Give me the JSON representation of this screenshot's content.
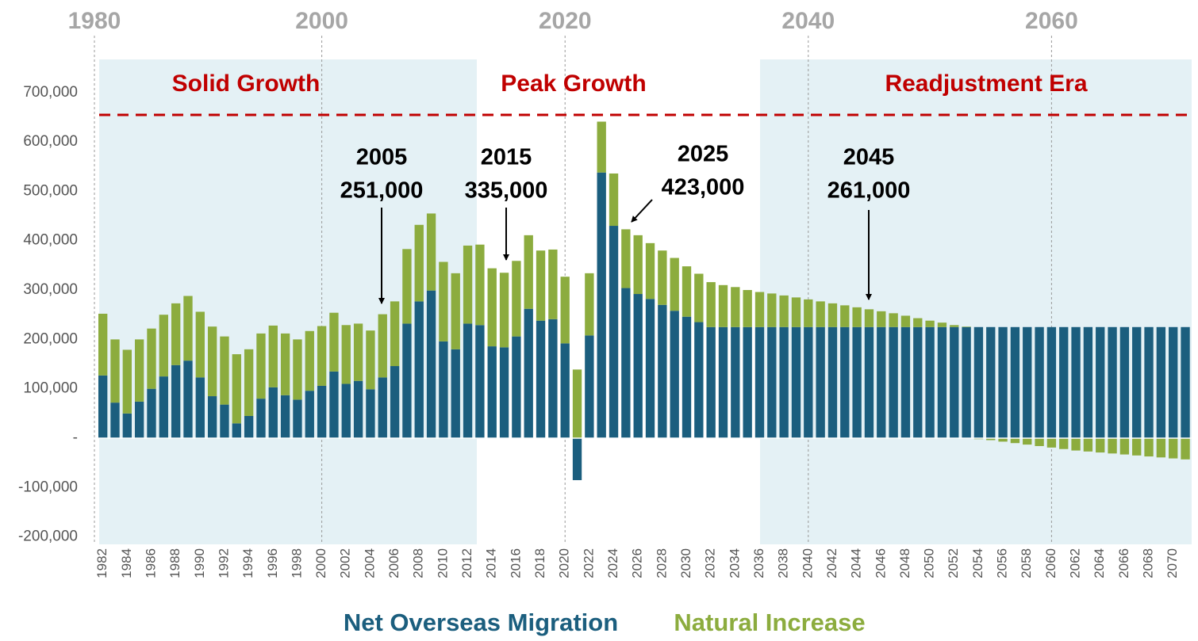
{
  "chart_data": {
    "type": "bar",
    "stacked": true,
    "categories": [
      "1982",
      null,
      "1984",
      null,
      "1986",
      null,
      "1988",
      null,
      "1990",
      null,
      "1992",
      null,
      "1994",
      null,
      "1996",
      null,
      "1998",
      null,
      "2000",
      null,
      "2002",
      null,
      "2004",
      null,
      "2006",
      null,
      "2008",
      null,
      "2010",
      null,
      "2012",
      null,
      "2014",
      null,
      "2016",
      null,
      "2018",
      null,
      "2020",
      null,
      "2022",
      null,
      "2024",
      null,
      "2026",
      null,
      "2028",
      null,
      "2030",
      null,
      "2032",
      null,
      "2034",
      null,
      "2036",
      null,
      "2038",
      null,
      "2040",
      null,
      "2042",
      null,
      "2044",
      null,
      "2046",
      null,
      "2048",
      null,
      "2050",
      null,
      "2052",
      null,
      "2054",
      null,
      "2056",
      null,
      "2058",
      null,
      "2060",
      null,
      "2062",
      null,
      "2064",
      null,
      "2066",
      null,
      "2068",
      null,
      "2070",
      null
    ],
    "series": [
      {
        "name": "Net Overseas Migration",
        "color": "#1b5e7e",
        "values": [
          127000,
          72000,
          50000,
          74000,
          100000,
          125000,
          148000,
          157000,
          123000,
          85000,
          68000,
          30000,
          45000,
          80000,
          103000,
          87000,
          78000,
          96000,
          106000,
          135000,
          110000,
          116000,
          99000,
          123000,
          146000,
          232000,
          277000,
          299000,
          196000,
          180000,
          232000,
          229000,
          186000,
          184000,
          206000,
          262000,
          238000,
          241000,
          192000,
          -85000,
          208000,
          538000,
          430000,
          304000,
          292000,
          282000,
          270000,
          258000,
          246000,
          235000,
          225000,
          225000,
          225000,
          225000,
          225000,
          225000,
          225000,
          225000,
          225000,
          225000,
          225000,
          225000,
          225000,
          225000,
          225000,
          225000,
          225000,
          225000,
          225000,
          225000,
          225000,
          225000,
          225000,
          225000,
          225000,
          225000,
          225000,
          225000,
          225000,
          225000,
          225000,
          225000,
          225000,
          225000,
          225000,
          225000,
          225000,
          225000,
          225000,
          225000
        ]
      },
      {
        "name": "Natural Increase",
        "color": "#8cac3e",
        "values": [
          125000,
          128000,
          129000,
          126000,
          122000,
          125000,
          125000,
          131000,
          133000,
          141000,
          138000,
          140000,
          135000,
          132000,
          125000,
          125000,
          122000,
          121000,
          121000,
          119000,
          119000,
          116000,
          119000,
          128000,
          131000,
          151000,
          155000,
          156000,
          161000,
          154000,
          158000,
          163000,
          158000,
          151000,
          153000,
          149000,
          142000,
          141000,
          135000,
          139000,
          126000,
          103000,
          106000,
          119000,
          119000,
          113000,
          110000,
          107000,
          102000,
          98000,
          91000,
          85000,
          81000,
          75000,
          71000,
          68000,
          64000,
          60000,
          56000,
          52000,
          48000,
          44000,
          40000,
          36000,
          32000,
          28000,
          23000,
          18000,
          13000,
          9000,
          4000,
          1000,
          -2000,
          -4000,
          -7000,
          -10000,
          -13000,
          -16000,
          -19000,
          -22000,
          -25000,
          -27000,
          -29000,
          -31000,
          -33000,
          -35000,
          -37000,
          -39000,
          -41000,
          -43000
        ]
      }
    ],
    "ylim": [
      -215000,
      767000
    ],
    "yticks": [
      {
        "value": -200000,
        "label": "-200,000"
      },
      {
        "value": -100000,
        "label": "-100,000"
      },
      {
        "value": 0,
        "label": "-"
      },
      {
        "value": 100000,
        "label": "100,000"
      },
      {
        "value": 200000,
        "label": "200,000"
      },
      {
        "value": 300000,
        "label": "300,000"
      },
      {
        "value": 400000,
        "label": "400,000"
      },
      {
        "value": 500000,
        "label": "500,000"
      },
      {
        "value": 600000,
        "label": "600,000"
      },
      {
        "value": 700000,
        "label": "700,000"
      }
    ],
    "x2ticks": [
      1980,
      2000,
      2020,
      2040,
      2060
    ],
    "regions": [
      "Solid Growth",
      "Peak Growth",
      "Readjustment Era"
    ],
    "annotations": [
      [
        "2005",
        "251,000"
      ],
      [
        "2015",
        "335,000"
      ],
      [
        "2025",
        "423,000"
      ],
      [
        "2045",
        "261,000"
      ]
    ],
    "legend": "bottom"
  }
}
